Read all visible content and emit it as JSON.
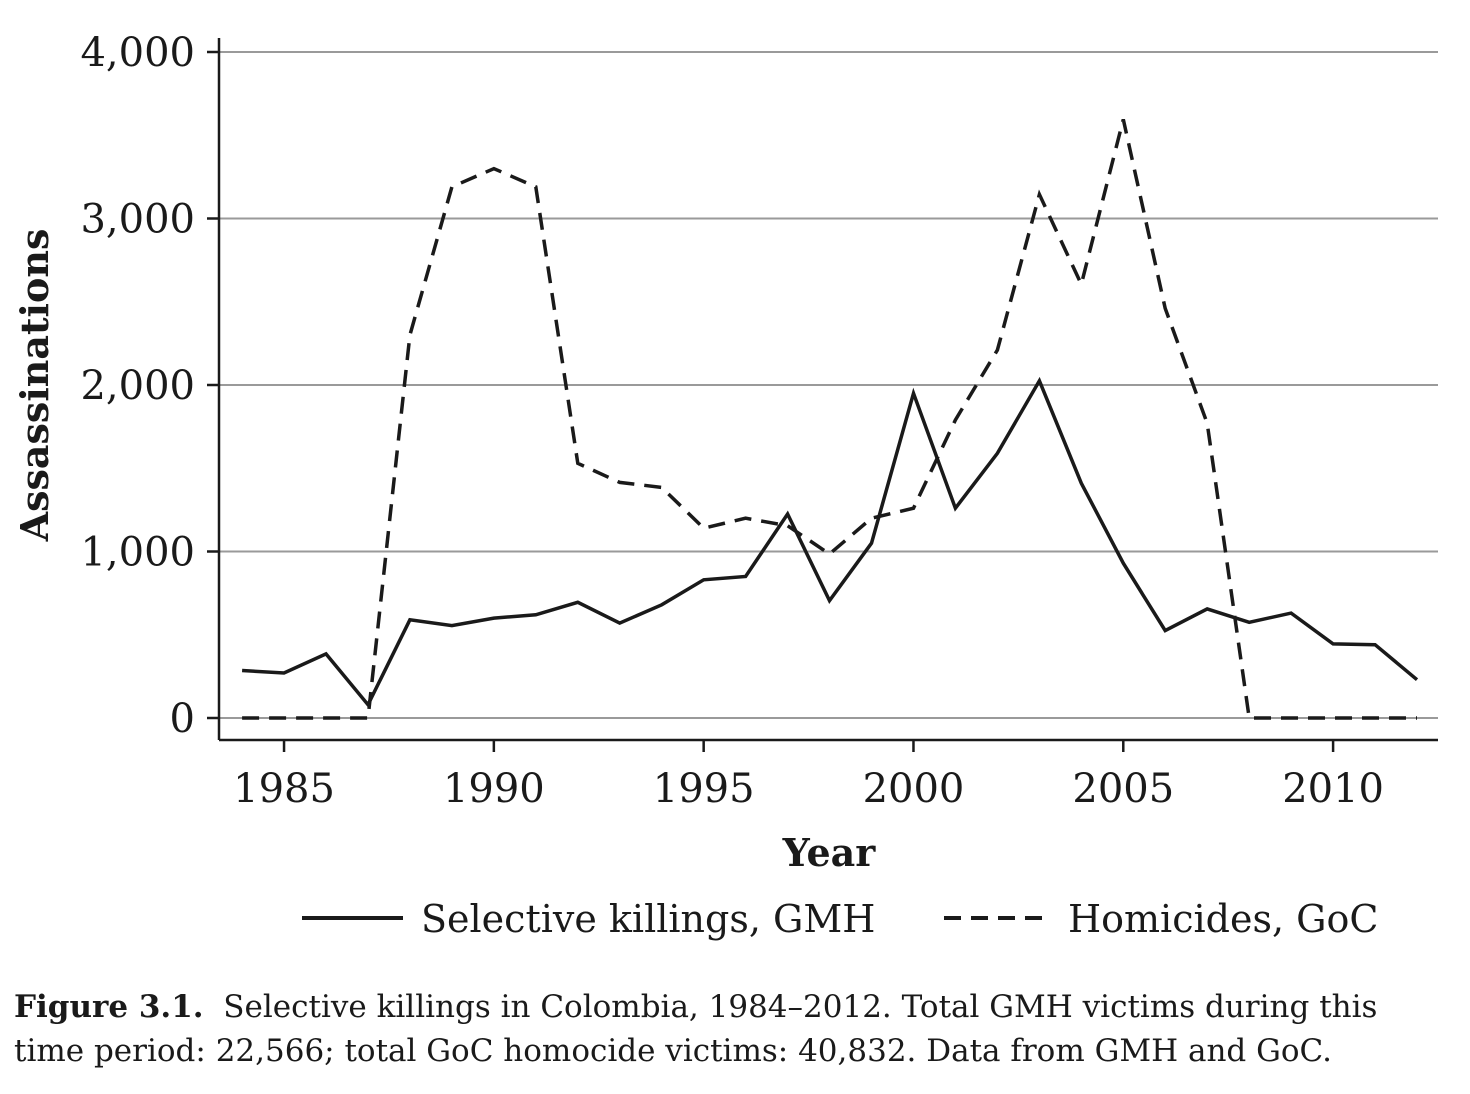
{
  "chart_data": {
    "type": "line",
    "xlabel": "Year",
    "ylabel": "Assassinations",
    "xlim": [
      1983.45,
      2012.5
    ],
    "ylim": [
      0,
      4000
    ],
    "x_ticks": [
      "1985",
      "1990",
      "1995",
      "2000",
      "2005",
      "2010"
    ],
    "y_ticks": [
      "0",
      "1,000",
      "2,000",
      "3,000",
      "4,000"
    ],
    "grid": "horizontal",
    "legend_position": "bottom",
    "x": [
      1984,
      1985,
      1986,
      1987,
      1988,
      1989,
      1990,
      1991,
      1992,
      1993,
      1994,
      1995,
      1996,
      1997,
      1998,
      1999,
      2000,
      2001,
      2002,
      2003,
      2004,
      2005,
      2006,
      2007,
      2008,
      2009,
      2010,
      2011,
      2012
    ],
    "series": [
      {
        "name": "Selective killings, GMH",
        "style": "solid",
        "values": [
          285,
          270,
          385,
          80,
          590,
          555,
          600,
          620,
          695,
          570,
          680,
          830,
          850,
          1225,
          705,
          1050,
          1950,
          1260,
          1590,
          2025,
          1410,
          930,
          525,
          655,
          575,
          630,
          445,
          440,
          230
        ]
      },
      {
        "name": "Homicides, GoC",
        "style": "dashed",
        "values": [
          0,
          0,
          0,
          0,
          2300,
          3190,
          3300,
          3190,
          1530,
          1415,
          1385,
          1140,
          1200,
          1155,
          985,
          1200,
          1260,
          1790,
          2210,
          3145,
          2605,
          3595,
          2460,
          1770,
          0,
          0,
          0,
          0,
          0
        ]
      }
    ]
  },
  "caption": {
    "label": "Figure 3.1.",
    "text": "Selective killings in Colombia, 1984–2012. Total GMH victims during this time period: 22,566; total GoC homocide victims: 40,832. Data from GMH and GoC."
  },
  "colors": {
    "line": "#1a1a1a",
    "grid": "#9a9a9a"
  }
}
